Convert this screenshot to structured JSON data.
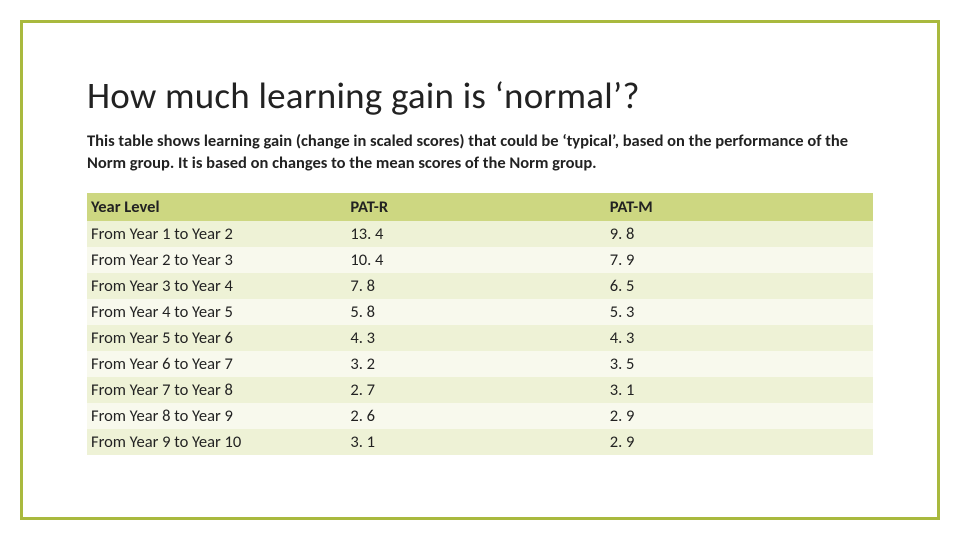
{
  "title": "How much learning gain is ‘normal’?",
  "subtitle": "This table shows learning gain (change in scaled scores) that could be ‘typical’, based on the performance of the Norm group. It is based on changes to the mean scores of the Norm group.",
  "table": {
    "columns": [
      "Year Level",
      "PAT-R",
      "PAT-M"
    ],
    "rows": [
      [
        "From Year 1 to Year 2",
        "13. 4",
        "9. 8"
      ],
      [
        "From Year 2 to Year 3",
        "10. 4",
        "7. 9"
      ],
      [
        "From Year 3 to Year 4",
        "7. 8",
        "6. 5"
      ],
      [
        "From Year 4 to Year 5",
        "5. 8",
        "5. 3"
      ],
      [
        "From Year 5 to Year 6",
        "4. 3",
        "4. 3"
      ],
      [
        "From Year 6 to Year 7",
        "3. 2",
        "3. 5"
      ],
      [
        "From Year 7 to Year 8",
        "2. 7",
        "3. 1"
      ],
      [
        "From Year 8 to Year 9",
        "2. 6",
        "2. 9"
      ],
      [
        "From Year 9 to Year 10",
        "3. 1",
        "2. 9"
      ]
    ],
    "header_bg": "#cdd781",
    "row_bg": "#eef2d6",
    "row_bg_alt": "#f8f9ed",
    "border_color": "#a9b93e",
    "text_color": "#222222"
  }
}
